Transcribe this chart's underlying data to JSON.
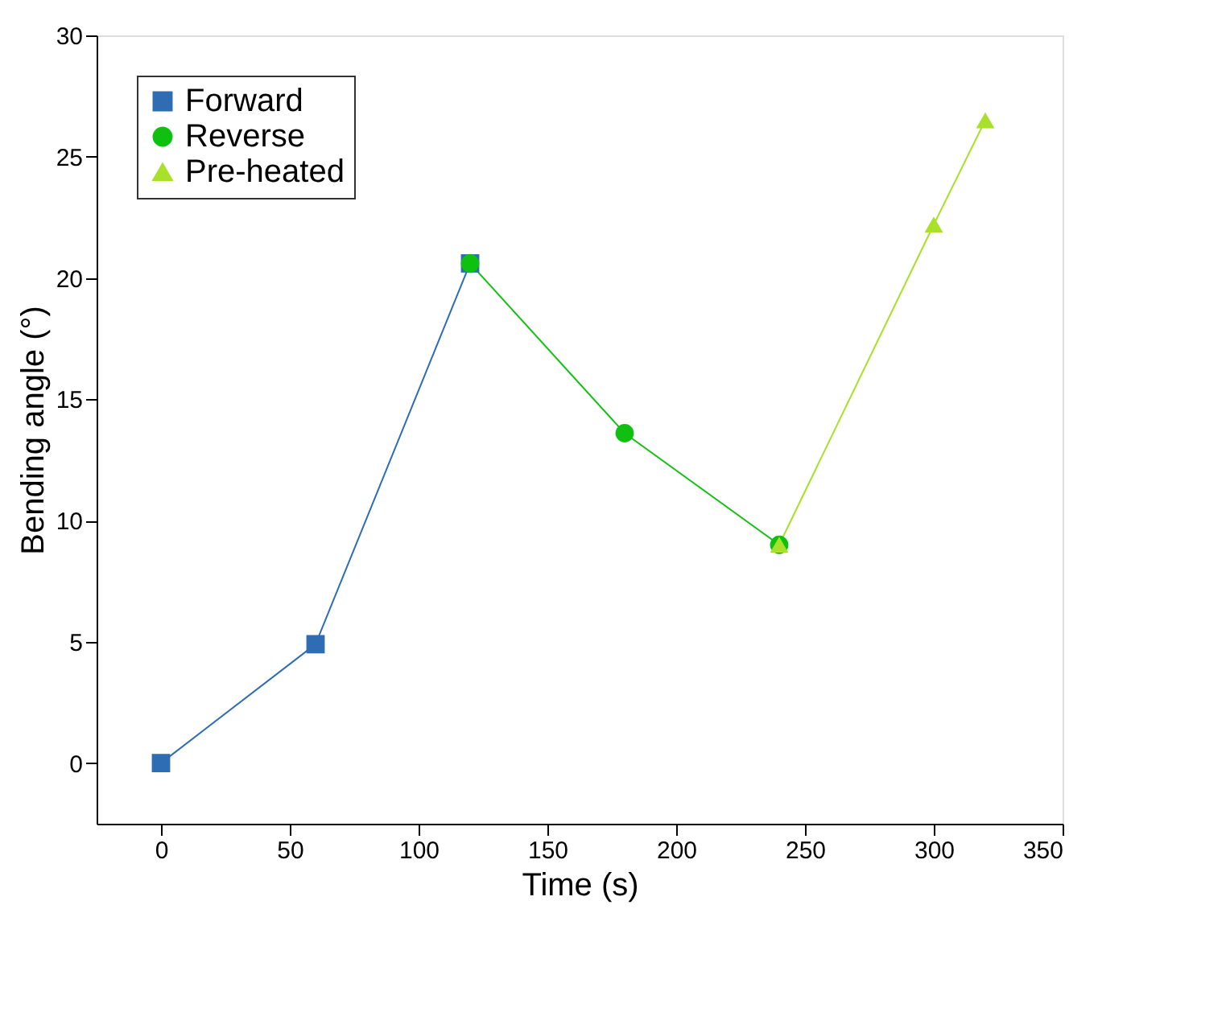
{
  "chart_data": {
    "type": "line",
    "xlabel": "Time (s)",
    "ylabel": "Bending angle (°)",
    "xlim": [
      -25,
      350
    ],
    "xticks": [
      0,
      50,
      100,
      150,
      200,
      250,
      300,
      350
    ],
    "ylim": [
      -2.5,
      30
    ],
    "yticks": [
      0,
      5,
      10,
      15,
      20,
      25,
      30
    ],
    "grid": false,
    "legend": "top left",
    "line_style": "solid",
    "series": [
      {
        "name": "Forward",
        "color": "#2e6db4",
        "marker": "square",
        "x": [
          0,
          60,
          120
        ],
        "values": [
          0,
          4.9,
          20.6
        ]
      },
      {
        "name": "Reverse",
        "color": "#10c010",
        "marker": "circle",
        "x": [
          120,
          180,
          240
        ],
        "values": [
          20.6,
          13.6,
          9.0
        ]
      },
      {
        "name": "Pre-heated",
        "color": "#a8e02a",
        "marker": "triangle",
        "x": [
          240,
          300,
          320
        ],
        "values": [
          9.0,
          22.2,
          26.5
        ]
      }
    ]
  }
}
